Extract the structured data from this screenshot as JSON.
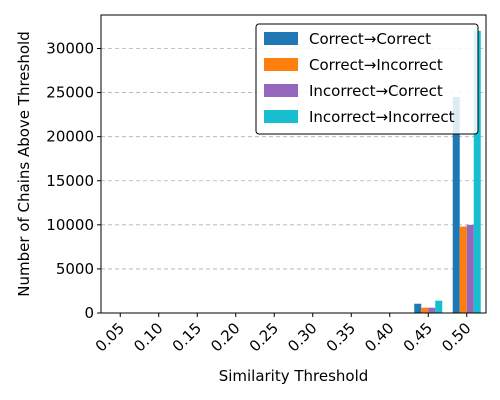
{
  "chart_data": {
    "type": "bar",
    "title": "",
    "xlabel": "Similarity Threshold",
    "ylabel": "Number of Chains Above Threshold",
    "categories": [
      "0.05",
      "0.10",
      "0.15",
      "0.20",
      "0.25",
      "0.30",
      "0.35",
      "0.40",
      "0.45",
      "0.50"
    ],
    "ylim": [
      0,
      33800
    ],
    "yticks": [
      0,
      5000,
      10000,
      15000,
      20000,
      25000,
      30000
    ],
    "grid": "y-dashed",
    "legend_position": "top-right",
    "series": [
      {
        "name": "Correct→Correct",
        "color": "#1f77b4",
        "values": [
          0,
          0,
          0,
          0,
          0,
          0,
          0,
          0,
          1050,
          24500
        ]
      },
      {
        "name": "Correct→Incorrect",
        "color": "#ff7f0e",
        "values": [
          0,
          0,
          0,
          0,
          0,
          0,
          0,
          0,
          600,
          9800
        ]
      },
      {
        "name": "Incorrect→Correct",
        "color": "#9467bd",
        "values": [
          0,
          0,
          0,
          0,
          0,
          0,
          0,
          0,
          600,
          10000
        ]
      },
      {
        "name": "Incorrect→Incorrect",
        "color": "#17becf",
        "values": [
          0,
          0,
          0,
          0,
          0,
          0,
          0,
          0,
          1400,
          32000
        ]
      }
    ]
  }
}
